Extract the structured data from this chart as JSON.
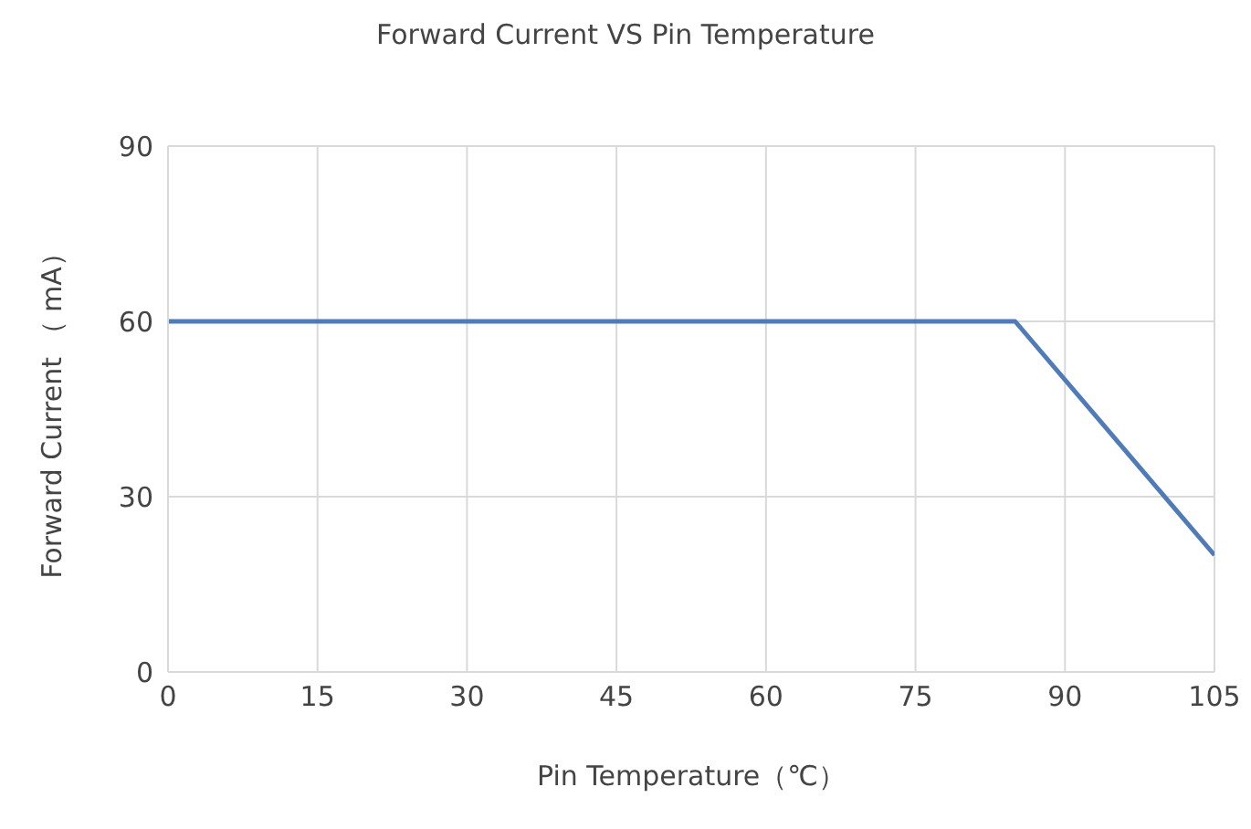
{
  "chart_data": {
    "type": "line",
    "title": "Forward Current VS Pin Temperature",
    "xlabel": "Pin Temperature（℃）",
    "ylabel": "Forward Current （ mA）",
    "x": [
      0,
      85,
      105
    ],
    "series": [
      {
        "color": "#4f7cb8",
        "values": [
          60,
          60,
          20
        ]
      }
    ],
    "xlim": [
      0,
      105
    ],
    "xticks": [
      0,
      15,
      30,
      45,
      60,
      75,
      90,
      105
    ],
    "ylim": [
      0,
      90
    ],
    "yticks": [
      0,
      30,
      60,
      90
    ],
    "grid": true,
    "legend": false,
    "marker": "none",
    "line_style": "solid"
  }
}
